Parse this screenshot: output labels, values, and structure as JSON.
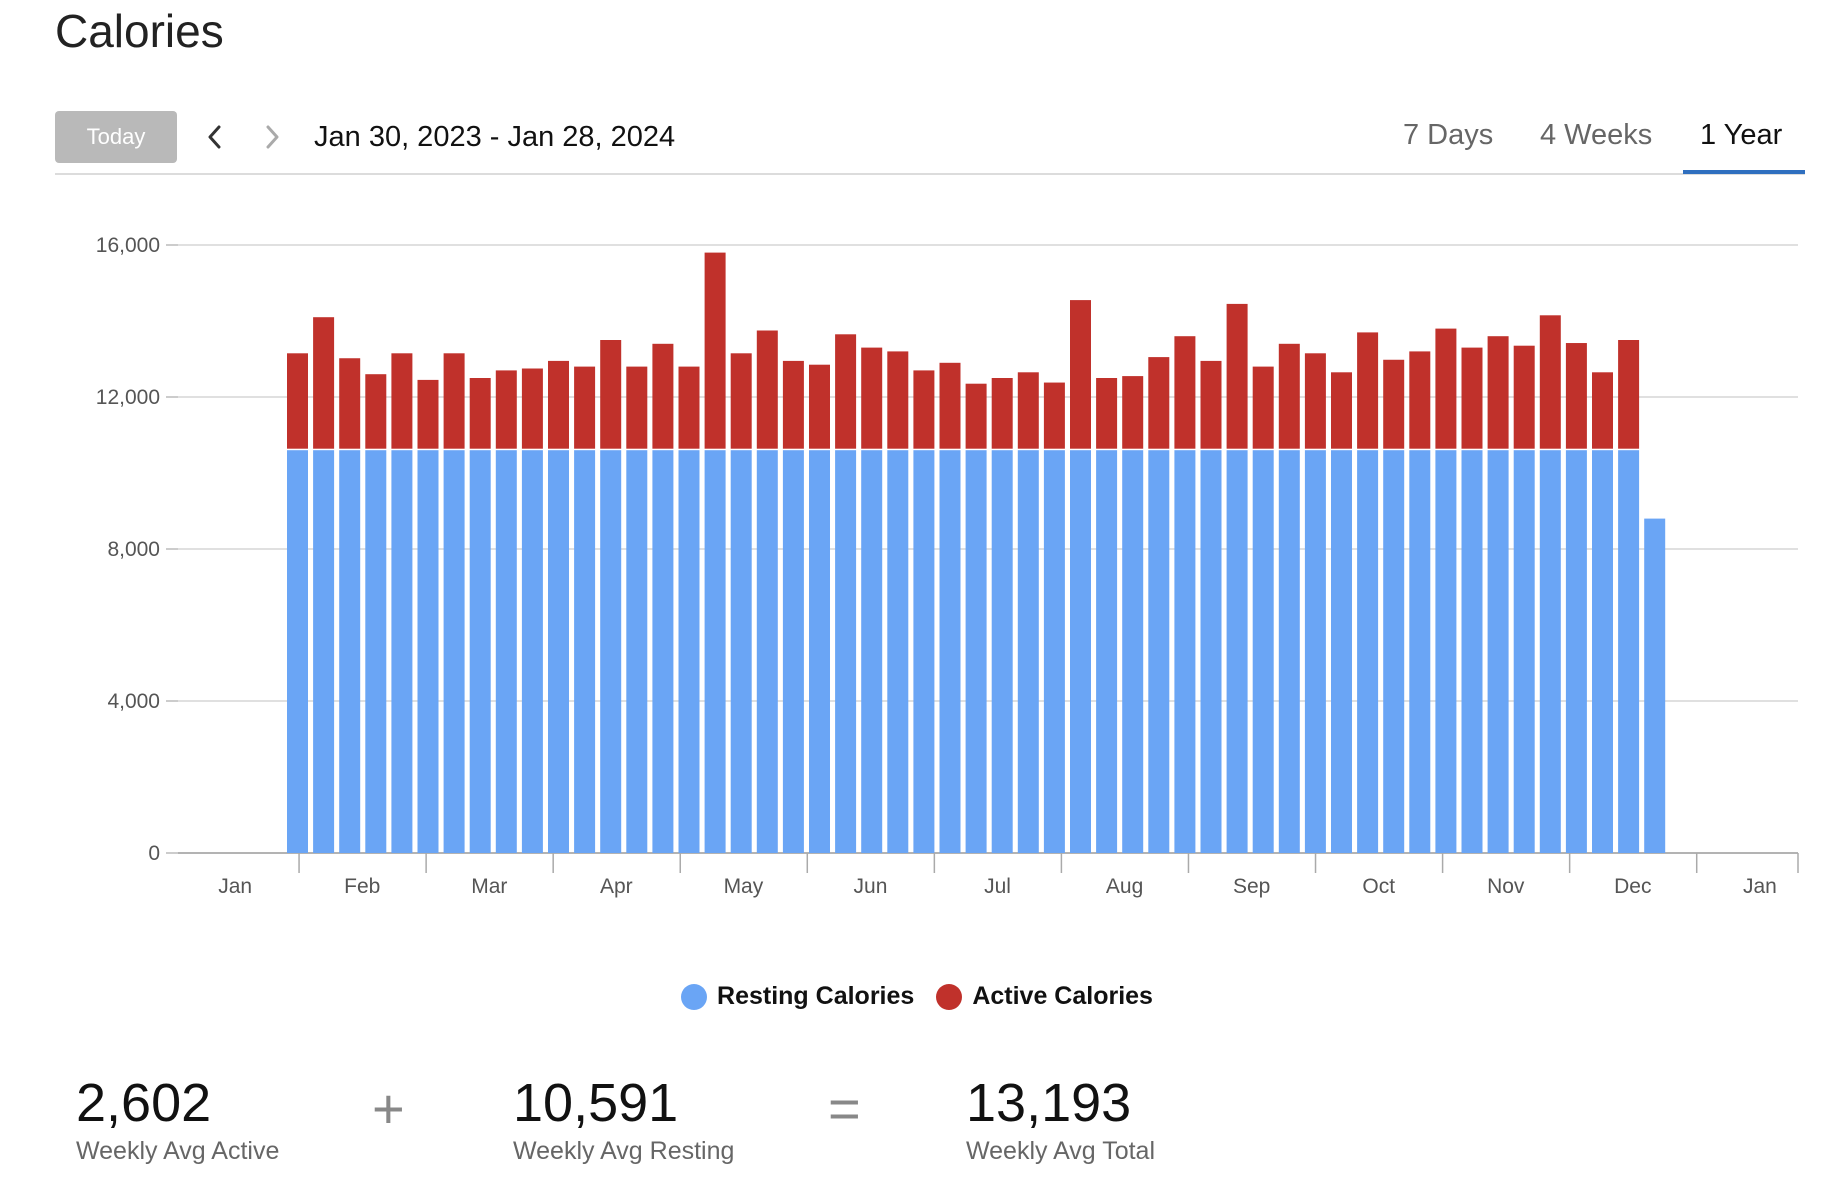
{
  "page": {
    "title": "Calories"
  },
  "toolbar": {
    "today_label": "Today",
    "date_range": "Jan 30, 2023 - Jan 28, 2024",
    "tabs": [
      {
        "label": "7 Days",
        "selected": false
      },
      {
        "label": "4 Weeks",
        "selected": false
      },
      {
        "label": "1 Year",
        "selected": true
      }
    ]
  },
  "colors": {
    "resting": "#6aa5f5",
    "active": "#c0312b",
    "accent": "#2f6fbf"
  },
  "icons": {
    "prev": "chevron-left-icon",
    "next": "chevron-right-icon"
  },
  "chart_data": {
    "type": "bar",
    "stacked": true,
    "ylim": [
      0,
      16000
    ],
    "yticks": [
      "0",
      "4,000",
      "8,000",
      "12,000",
      "16,000"
    ],
    "month_labels": [
      "Jan",
      "Feb",
      "Mar",
      "Apr",
      "May",
      "Jun",
      "Jul",
      "Aug",
      "Sep",
      "Oct",
      "Nov",
      "Dec",
      "Jan"
    ],
    "grid": true,
    "legend_position": "bottom",
    "series": [
      {
        "name": "Resting Calories",
        "color": "#6aa5f5",
        "values": [
          10600,
          10600,
          10600,
          10600,
          10600,
          10600,
          10600,
          10600,
          10600,
          10600,
          10600,
          10600,
          10600,
          10600,
          10600,
          10600,
          10600,
          10600,
          10600,
          10600,
          10600,
          10600,
          10600,
          10600,
          10600,
          10600,
          10600,
          10600,
          10600,
          10600,
          10600,
          10600,
          10600,
          10600,
          10600,
          10600,
          10600,
          10600,
          10600,
          10600,
          10600,
          10600,
          10600,
          10600,
          10600,
          10600,
          10600,
          10600,
          10600,
          10600,
          10600,
          10600,
          8800
        ]
      },
      {
        "name": "Active Calories",
        "color": "#c0312b",
        "values": [
          2550,
          3500,
          2420,
          2000,
          2550,
          1850,
          2550,
          1900,
          2100,
          2150,
          2350,
          2200,
          2900,
          2200,
          2800,
          2200,
          5200,
          2550,
          3150,
          2350,
          2250,
          3050,
          2700,
          2600,
          2100,
          2300,
          1750,
          1900,
          2050,
          1780,
          3950,
          1900,
          1950,
          2450,
          3000,
          2350,
          3850,
          2200,
          2800,
          2550,
          2050,
          3100,
          2380,
          2600,
          3200,
          2700,
          3000,
          2750,
          3550,
          2820,
          2050,
          2900
        ]
      }
    ]
  },
  "summary": {
    "active_value": "2,602",
    "active_label": "Weekly Avg Active",
    "plus": "+",
    "resting_value": "10,591",
    "resting_label": "Weekly Avg Resting",
    "equals": "=",
    "total_value": "13,193",
    "total_label": "Weekly Avg Total"
  }
}
